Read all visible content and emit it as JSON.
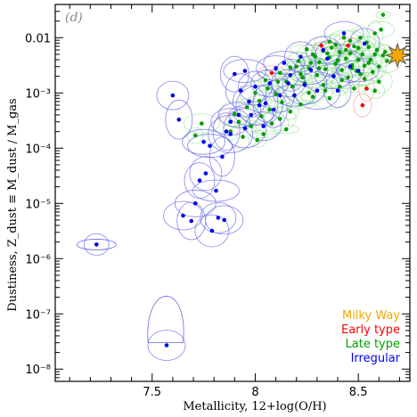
{
  "chart_data": {
    "type": "scatter",
    "panel_label": "(d)",
    "xlabel": "Metallicity, 12+log(O/H)",
    "ylabel": "Dustiness, Z_dust ≡ M_dust / M_gas",
    "x_scale": "linear",
    "y_scale": "log",
    "xlim": [
      7.03,
      8.75
    ],
    "ylim": [
      6e-09,
      0.04
    ],
    "x_ticks": [
      7.5,
      8,
      8.5
    ],
    "x_tick_labels": [
      "7.5",
      "8",
      "8.5"
    ],
    "y_ticks": [
      1e-08,
      1e-07,
      1e-06,
      1e-05,
      0.0001,
      0.001,
      0.01
    ],
    "y_tick_labels": [
      "10⁻⁸",
      "10⁻⁷",
      "10⁻⁶",
      "10⁻⁵",
      "10⁻⁴",
      "10⁻³",
      "0.01"
    ],
    "grid": false,
    "legend_position": "bottom-right",
    "colors": {
      "Milky Way": "#f5a800",
      "Early type": "#ff0000",
      "Late type": "#00a000",
      "Irregular": "#0000ee"
    },
    "series": [
      {
        "name": "Milky Way",
        "marker": "star",
        "points": [
          [
            8.69,
            0.0048
          ]
        ]
      },
      {
        "name": "Early type",
        "marker": "dot",
        "points": [
          [
            8.32,
            0.0072
          ],
          [
            8.45,
            0.0072
          ],
          [
            8.54,
            0.0012
          ],
          [
            8.08,
            0.0023
          ],
          [
            8.52,
            0.0006
          ]
        ]
      },
      {
        "name": "Late type",
        "marker": "dot",
        "points": [
          [
            8.62,
            0.026
          ],
          [
            8.61,
            0.014
          ],
          [
            8.58,
            0.012
          ],
          [
            8.43,
            0.01
          ],
          [
            8.51,
            0.01
          ],
          [
            8.36,
            0.0085
          ],
          [
            8.39,
            0.0075
          ],
          [
            8.48,
            0.007
          ],
          [
            8.55,
            0.0068
          ],
          [
            8.25,
            0.0062
          ],
          [
            8.33,
            0.0058
          ],
          [
            8.41,
            0.0055
          ],
          [
            8.46,
            0.0052
          ],
          [
            8.52,
            0.005
          ],
          [
            8.58,
            0.005
          ],
          [
            8.62,
            0.0048
          ],
          [
            8.29,
            0.0046
          ],
          [
            8.36,
            0.0044
          ],
          [
            8.44,
            0.0042
          ],
          [
            8.5,
            0.004
          ],
          [
            8.56,
            0.004
          ],
          [
            8.21,
            0.0038
          ],
          [
            8.31,
            0.0036
          ],
          [
            8.39,
            0.0034
          ],
          [
            8.47,
            0.0032
          ],
          [
            8.53,
            0.0031
          ],
          [
            8.6,
            0.003
          ],
          [
            8.17,
            0.0029
          ],
          [
            8.26,
            0.0028
          ],
          [
            8.34,
            0.0027
          ],
          [
            8.42,
            0.0026
          ],
          [
            8.49,
            0.0025
          ],
          [
            8.57,
            0.0024
          ],
          [
            8.12,
            0.0023
          ],
          [
            8.22,
            0.0022
          ],
          [
            8.3,
            0.0021
          ],
          [
            8.38,
            0.002
          ],
          [
            8.45,
            0.0019
          ],
          [
            8.53,
            0.0018
          ],
          [
            8.05,
            0.0017
          ],
          [
            8.15,
            0.0016
          ],
          [
            8.24,
            0.0015
          ],
          [
            8.33,
            0.0014
          ],
          [
            8.41,
            0.0013
          ],
          [
            8.48,
            0.0012
          ],
          [
            8.58,
            0.0011
          ],
          [
            8.0,
            0.001
          ],
          [
            8.1,
            0.00095
          ],
          [
            8.19,
            0.0009
          ],
          [
            8.28,
            0.00085
          ],
          [
            8.36,
            0.0008
          ],
          [
            8.02,
            0.00072
          ],
          [
            8.13,
            0.00068
          ],
          [
            8.22,
            0.00062
          ],
          [
            7.96,
            0.00055
          ],
          [
            8.07,
            0.0005
          ],
          [
            8.17,
            0.00046
          ],
          [
            7.9,
            0.00042
          ],
          [
            8.03,
            0.00038
          ],
          [
            8.12,
            0.00034
          ],
          [
            7.92,
            0.0003
          ],
          [
            8.08,
            0.00028
          ],
          [
            7.98,
            0.00025
          ],
          [
            7.74,
            0.00028
          ],
          [
            8.15,
            0.00022
          ],
          [
            7.88,
            0.0002
          ],
          [
            8.04,
            0.00018
          ],
          [
            7.71,
            0.00017
          ],
          [
            7.94,
            0.00016
          ],
          [
            8.01,
            0.00014
          ],
          [
            8.18,
            0.0013
          ],
          [
            8.27,
            0.0035
          ],
          [
            8.35,
            0.0052
          ],
          [
            8.44,
            0.006
          ],
          [
            8.5,
            0.0065
          ],
          [
            8.4,
            0.0039
          ],
          [
            8.31,
            0.0028
          ],
          [
            8.23,
            0.0019
          ],
          [
            8.47,
            0.0028
          ],
          [
            8.55,
            0.0035
          ],
          [
            8.59,
            0.006
          ],
          [
            8.64,
            0.0038
          ],
          [
            8.54,
            0.0082
          ],
          [
            8.46,
            0.0088
          ],
          [
            8.37,
            0.0066
          ],
          [
            8.28,
            0.005
          ],
          [
            8.2,
            0.003
          ],
          [
            8.11,
            0.0016
          ],
          [
            8.06,
            0.0012
          ],
          [
            8.42,
            0.0017
          ],
          [
            8.51,
            0.0022
          ],
          [
            8.63,
            0.0055
          ],
          [
            8.6,
            0.0016
          ],
          [
            8.34,
            0.0011
          ],
          [
            8.26,
            0.001
          ]
        ]
      },
      {
        "name": "Irregular",
        "marker": "dot",
        "points": [
          [
            7.23,
            1.8e-06
          ],
          [
            7.57,
            2.7e-08
          ],
          [
            7.63,
            0.00033
          ],
          [
            7.65,
            6e-06
          ],
          [
            7.69,
            4.8e-06
          ],
          [
            7.71,
            1e-05
          ],
          [
            7.73,
            2.6e-05
          ],
          [
            7.75,
            0.00013
          ],
          [
            7.76,
            3.5e-05
          ],
          [
            7.78,
            0.00011
          ],
          [
            7.79,
            3.2e-06
          ],
          [
            7.81,
            1.7e-05
          ],
          [
            7.82,
            5.5e-06
          ],
          [
            7.84,
            7e-05
          ],
          [
            7.85,
            5e-06
          ],
          [
            7.86,
            0.0002
          ],
          [
            7.88,
            0.0003
          ],
          [
            7.9,
            0.0022
          ],
          [
            7.92,
            0.0004
          ],
          [
            7.93,
            0.0011
          ],
          [
            7.95,
            0.0025
          ],
          [
            7.97,
            0.0007
          ],
          [
            7.98,
            0.0004
          ],
          [
            8.0,
            0.0013
          ],
          [
            8.02,
            0.0006
          ],
          [
            8.04,
            0.00025
          ],
          [
            8.05,
            0.00065
          ],
          [
            8.07,
            0.0015
          ],
          [
            8.09,
            0.0005
          ],
          [
            8.1,
            0.0028
          ],
          [
            8.12,
            0.0009
          ],
          [
            8.14,
            0.0035
          ],
          [
            8.17,
            0.0021
          ],
          [
            8.19,
            0.0009
          ],
          [
            8.22,
            0.0045
          ],
          [
            8.24,
            0.0014
          ],
          [
            8.27,
            0.0026
          ],
          [
            8.3,
            0.0011
          ],
          [
            8.33,
            0.006
          ],
          [
            8.35,
            0.0042
          ],
          [
            8.38,
            0.002
          ],
          [
            8.4,
            0.0011
          ],
          [
            8.43,
            0.012
          ],
          [
            8.46,
            0.003
          ],
          [
            8.5,
            0.0025
          ],
          [
            8.53,
            0.0078
          ],
          [
            7.95,
            0.00023
          ],
          [
            7.6,
            0.0009
          ],
          [
            7.88,
            0.00018
          ],
          [
            8.16,
            0.0015
          ]
        ]
      }
    ]
  }
}
